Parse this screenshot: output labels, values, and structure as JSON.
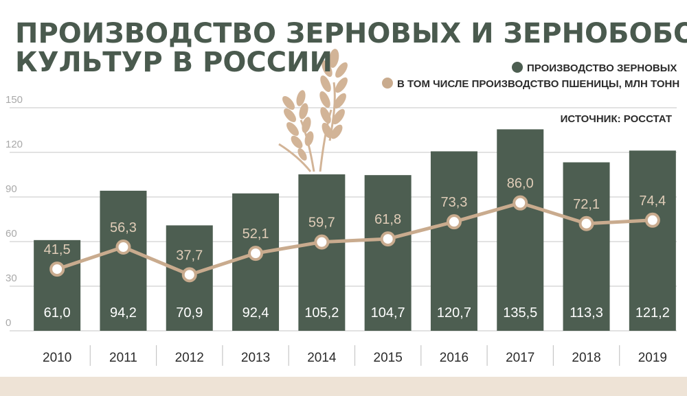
{
  "chart_data": {
    "type": "bar",
    "title_lines": [
      "ПРОИЗВОДСТВО ЗЕРНОВЫХ И ЗЕРНОБОБОВЫХ",
      "КУЛЬТУР В РОССИИ"
    ],
    "source": "ИСТОЧНИК: РОССТАТ",
    "categories": [
      "2010",
      "2011",
      "2012",
      "2013",
      "2014",
      "2015",
      "2016",
      "2017",
      "2018",
      "2019"
    ],
    "series": [
      {
        "name": "ПРОИЗВОДСТВО ЗЕРНОВЫХ",
        "type": "bar",
        "values": [
          61.0,
          94.2,
          70.9,
          92.4,
          105.2,
          104.7,
          120.7,
          135.5,
          113.3,
          121.2
        ],
        "labels": [
          "61,0",
          "94,2",
          "70,9",
          "92,4",
          "105,2",
          "104,7",
          "120,7",
          "135,5",
          "113,3",
          "121,2"
        ],
        "color": "#4d5e51"
      },
      {
        "name": "В ТОМ ЧИСЛЕ ПРОИЗВОДСТВО ПШЕНИЦЫ, МЛН ТОНН",
        "type": "line",
        "values": [
          41.5,
          56.3,
          37.7,
          52.1,
          59.7,
          61.8,
          73.3,
          86.0,
          72.1,
          74.4
        ],
        "labels": [
          "41,5",
          "56,3",
          "37,7",
          "52,1",
          "59,7",
          "61,8",
          "73,3",
          "86,0",
          "72,1",
          "74,4"
        ],
        "color": "#c9ab8e"
      }
    ],
    "yticks": [
      "0",
      "30",
      "60",
      "90",
      "120",
      "150"
    ],
    "ytick_values": [
      0,
      30,
      60,
      90,
      120,
      150
    ],
    "ylim": [
      0,
      150
    ],
    "grid": true,
    "legend_position": "top-right",
    "colors": {
      "title": "#4a5a4e",
      "bar": "#4d5e51",
      "line": "#c9ab8e",
      "line_label": "#e0cdb8",
      "grid": "#c6c6c6",
      "footer_band": "#eee3d6"
    }
  }
}
